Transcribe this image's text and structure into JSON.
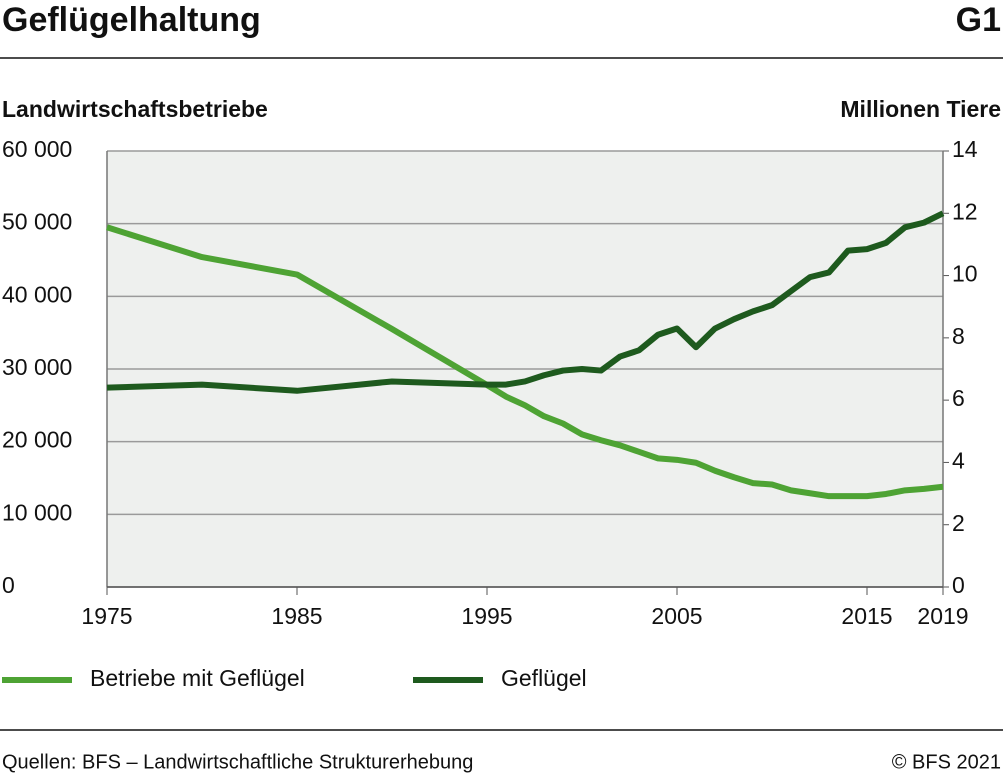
{
  "chart_data": {
    "type": "line",
    "title": "Geflügelhaltung",
    "chart_number": "G1",
    "y_label": "Landwirtschaftsbetriebe",
    "y2_label": "Millionen Tiere",
    "source": "Quellen: BFS – Landwirtschaftliche Strukturerhebung",
    "copyright": "© BFS 2021",
    "x": [
      1975,
      1980,
      1985,
      1990,
      1995,
      1996,
      1997,
      1998,
      1999,
      2000,
      2001,
      2002,
      2003,
      2004,
      2005,
      2006,
      2007,
      2008,
      2009,
      2010,
      2011,
      2012,
      2013,
      2014,
      2015,
      2016,
      2017,
      2018,
      2019
    ],
    "series": [
      {
        "name": "Betriebe mit Geflügel",
        "color": "#4ea334",
        "axis": "y",
        "values": [
          49500,
          45400,
          43000,
          35500,
          27800,
          26200,
          25000,
          23500,
          22500,
          21000,
          20200,
          19500,
          18600,
          17700,
          17500,
          17100,
          16000,
          15100,
          14300,
          14100,
          13300,
          12900,
          12500,
          12500,
          12500,
          12800,
          13300,
          13500,
          13800
        ]
      },
      {
        "name": "Geflügel",
        "color": "#1e5a1e",
        "axis": "y2",
        "values": [
          6.4,
          6.5,
          6.3,
          6.6,
          6.5,
          6.5,
          6.6,
          6.8,
          6.95,
          7.0,
          6.95,
          7.4,
          7.6,
          8.1,
          8.3,
          7.7,
          8.3,
          8.6,
          8.85,
          9.05,
          9.5,
          9.95,
          10.1,
          10.8,
          10.85,
          11.05,
          11.55,
          11.7,
          12.0
        ]
      }
    ],
    "xlim": [
      1975,
      2019
    ],
    "xticks": [
      1975,
      1985,
      1995,
      2005,
      2015,
      2019
    ],
    "ylim": [
      0,
      60000
    ],
    "yticks": [
      0,
      {
        "value": 10000,
        "label": "10 000"
      },
      {
        "value": 20000,
        "label": "20 000"
      },
      {
        "value": 30000,
        "label": "30 000"
      },
      {
        "value": 40000,
        "label": "40 000"
      },
      {
        "value": 50000,
        "label": "50 000"
      },
      {
        "value": 60000,
        "label": "60 000"
      }
    ],
    "y2lim": [
      0,
      14
    ],
    "y2ticks": [
      0,
      2,
      4,
      6,
      8,
      10,
      12,
      14
    ],
    "grid": true
  }
}
